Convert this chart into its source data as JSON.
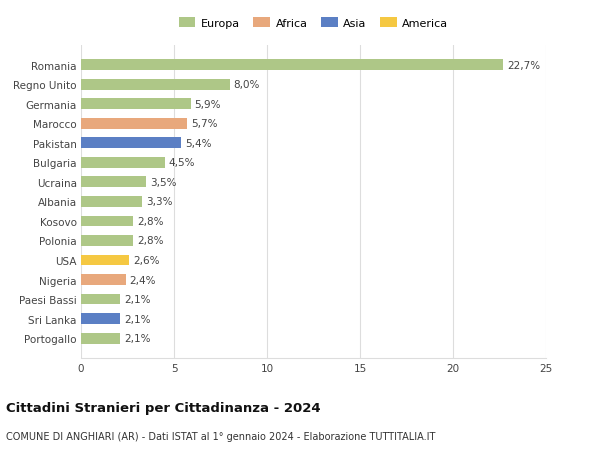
{
  "categories": [
    "Portogallo",
    "Sri Lanka",
    "Paesi Bassi",
    "Nigeria",
    "USA",
    "Polonia",
    "Kosovo",
    "Albania",
    "Ucraina",
    "Bulgaria",
    "Pakistan",
    "Marocco",
    "Germania",
    "Regno Unito",
    "Romania"
  ],
  "values": [
    2.1,
    2.1,
    2.1,
    2.4,
    2.6,
    2.8,
    2.8,
    3.3,
    3.5,
    4.5,
    5.4,
    5.7,
    5.9,
    8.0,
    22.7
  ],
  "labels": [
    "2,1%",
    "2,1%",
    "2,1%",
    "2,4%",
    "2,6%",
    "2,8%",
    "2,8%",
    "3,3%",
    "3,5%",
    "4,5%",
    "5,4%",
    "5,7%",
    "5,9%",
    "8,0%",
    "22,7%"
  ],
  "colors": [
    "#aec787",
    "#5b7fc4",
    "#aec787",
    "#e8a87c",
    "#f5c842",
    "#aec787",
    "#aec787",
    "#aec787",
    "#aec787",
    "#aec787",
    "#5b7fc4",
    "#e8a87c",
    "#aec787",
    "#aec787",
    "#aec787"
  ],
  "legend": [
    {
      "label": "Europa",
      "color": "#aec787"
    },
    {
      "label": "Africa",
      "color": "#e8a87c"
    },
    {
      "label": "Asia",
      "color": "#5b7fc4"
    },
    {
      "label": "America",
      "color": "#f5c842"
    }
  ],
  "xlim": [
    0,
    25
  ],
  "xticks": [
    0,
    5,
    10,
    15,
    20,
    25
  ],
  "title1": "Cittadini Stranieri per Cittadinanza - 2024",
  "title2": "COMUNE DI ANGHIARI (AR) - Dati ISTAT al 1° gennaio 2024 - Elaborazione TUTTITALIA.IT",
  "background_color": "#ffffff",
  "grid_color": "#dddddd",
  "bar_height": 0.55,
  "label_fontsize": 7.5,
  "tick_fontsize": 7.5,
  "title1_fontsize": 9.5,
  "title2_fontsize": 7.0,
  "legend_fontsize": 8.0
}
